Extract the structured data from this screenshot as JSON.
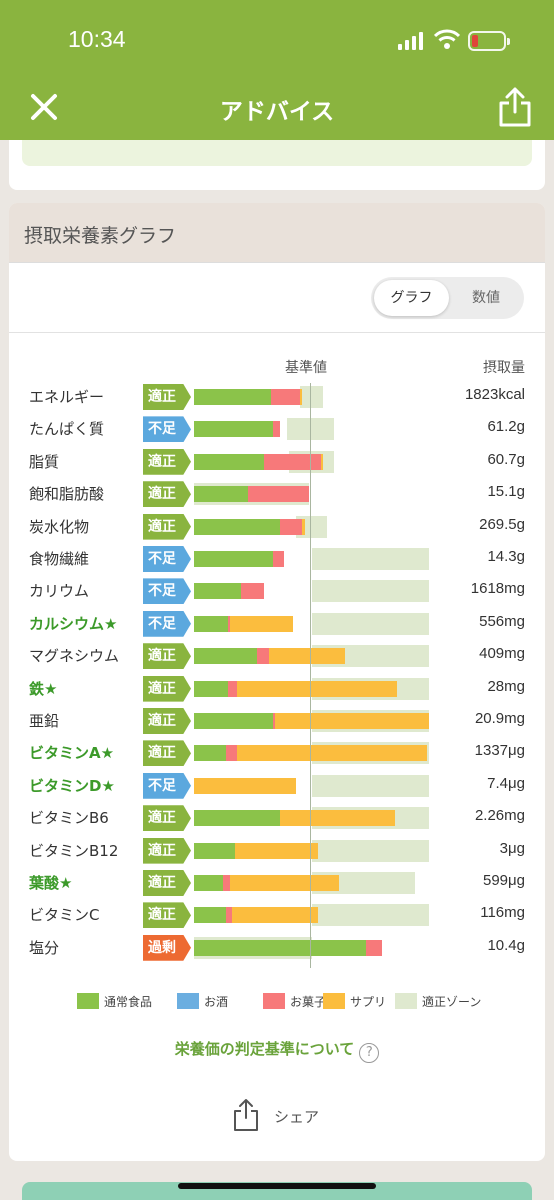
{
  "status": {
    "time": "10:34"
  },
  "nav": {
    "title": "アドバイス"
  },
  "card": {
    "title": "摂取栄養素グラフ",
    "toggle": {
      "graph": "グラフ",
      "numeric": "数値",
      "selected": "グラフ"
    },
    "col_base": "基準値",
    "col_intake": "摂取量"
  },
  "colors": {
    "normal": "#8bc34a",
    "alcohol": "#6baee0",
    "snack": "#f7797a",
    "supplement": "#fbbd3e",
    "zone": "#dfe9cf",
    "ok": "#8ab43f",
    "low": "#5ba8de",
    "high": "#ed6a32"
  },
  "statuses": {
    "ok": "適正",
    "low": "不足",
    "high": "過剰"
  },
  "chart_data": {
    "type": "bar",
    "stacked": true,
    "series_keys": [
      "normal",
      "snack",
      "supplement"
    ],
    "rows": [
      {
        "name": "エネルギー",
        "highlight": false,
        "status": "ok",
        "value": "1823kcal",
        "normal": 0.34,
        "snack": 0.13,
        "supplement": 0.01,
        "zone": [
          0.47,
          0.57
        ]
      },
      {
        "name": "たんぱく質",
        "highlight": false,
        "status": "low",
        "value": "61.2g",
        "normal": 0.35,
        "snack": 0.03,
        "supplement": 0,
        "zone": [
          0.41,
          0.62
        ]
      },
      {
        "name": "脂質",
        "highlight": false,
        "status": "ok",
        "value": "60.7g",
        "normal": 0.31,
        "snack": 0.25,
        "supplement": 0.01,
        "zone": [
          0.42,
          0.62
        ]
      },
      {
        "name": "飽和脂肪酸",
        "highlight": false,
        "status": "ok",
        "value": "15.1g",
        "normal": 0.24,
        "snack": 0.27,
        "supplement": 0,
        "zone": [
          0.0,
          0.51
        ]
      },
      {
        "name": "炭水化物",
        "highlight": false,
        "status": "ok",
        "value": "269.5g",
        "normal": 0.38,
        "snack": 0.1,
        "supplement": 0.01,
        "zone": [
          0.45,
          0.59
        ]
      },
      {
        "name": "食物繊維",
        "highlight": false,
        "status": "low",
        "value": "14.3g",
        "normal": 0.35,
        "snack": 0.05,
        "supplement": 0,
        "zone": [
          0.52,
          1.04
        ]
      },
      {
        "name": "カリウム",
        "highlight": false,
        "status": "low",
        "value": "1618mg",
        "normal": 0.21,
        "snack": 0.1,
        "supplement": 0,
        "zone": [
          0.52,
          1.04
        ]
      },
      {
        "name": "カルシウム★",
        "highlight": true,
        "status": "low",
        "value": "556mg",
        "normal": 0.15,
        "snack": 0.01,
        "supplement": 0.28,
        "zone": [
          0.52,
          1.04
        ]
      },
      {
        "name": "マグネシウム",
        "highlight": false,
        "status": "ok",
        "value": "409mg",
        "normal": 0.28,
        "snack": 0.05,
        "supplement": 0.34,
        "zone": [
          0.52,
          1.04
        ]
      },
      {
        "name": "鉄★",
        "highlight": true,
        "status": "ok",
        "value": "28mg",
        "normal": 0.15,
        "snack": 0.04,
        "supplement": 0.71,
        "zone": [
          0.52,
          1.04
        ]
      },
      {
        "name": "亜鉛",
        "highlight": false,
        "status": "ok",
        "value": "20.9mg",
        "normal": 0.35,
        "snack": 0.01,
        "supplement": 0.68,
        "zone": [
          0.52,
          1.04
        ]
      },
      {
        "name": "ビタミンA★",
        "highlight": true,
        "status": "ok",
        "value": "1337μg",
        "normal": 0.14,
        "snack": 0.05,
        "supplement": 0.84,
        "zone": [
          0.52,
          1.04
        ]
      },
      {
        "name": "ビタミンD★",
        "highlight": true,
        "status": "low",
        "value": "7.4μg",
        "normal": 0.0,
        "snack": 0.0,
        "supplement": 0.45,
        "zone": [
          0.52,
          1.04
        ]
      },
      {
        "name": "ビタミンB6",
        "highlight": false,
        "status": "ok",
        "value": "2.26mg",
        "normal": 0.38,
        "snack": 0.0,
        "supplement": 0.51,
        "zone": [
          0.52,
          1.04
        ]
      },
      {
        "name": "ビタミンB12",
        "highlight": false,
        "status": "ok",
        "value": "3μg",
        "normal": 0.18,
        "snack": 0.0,
        "supplement": 0.37,
        "zone": [
          0.52,
          1.04
        ]
      },
      {
        "name": "葉酸★",
        "highlight": true,
        "status": "ok",
        "value": "599μg",
        "normal": 0.13,
        "snack": 0.03,
        "supplement": 0.48,
        "zone": [
          0.52,
          0.98
        ]
      },
      {
        "name": "ビタミンC",
        "highlight": false,
        "status": "ok",
        "value": "116mg",
        "normal": 0.14,
        "snack": 0.03,
        "supplement": 0.38,
        "zone": [
          0.52,
          1.04
        ]
      },
      {
        "name": "塩分",
        "highlight": false,
        "status": "high",
        "value": "10.4g",
        "normal": 0.76,
        "snack": 0.07,
        "supplement": 0,
        "zone": [
          0.0,
          0.52
        ]
      }
    ]
  },
  "legend": [
    {
      "label": "通常食品",
      "color": "#8bc34a"
    },
    {
      "label": "お酒",
      "color": "#6baee0"
    },
    {
      "label": "お菓子",
      "color": "#f7797a"
    },
    {
      "label": "サプリ",
      "color": "#fbbd3e"
    },
    {
      "label": "適正ゾーン",
      "color": "#dfe9cf"
    }
  ],
  "criteria_link": "栄養価の判定基準について",
  "criteria_help": "?",
  "share_label": "シェア"
}
